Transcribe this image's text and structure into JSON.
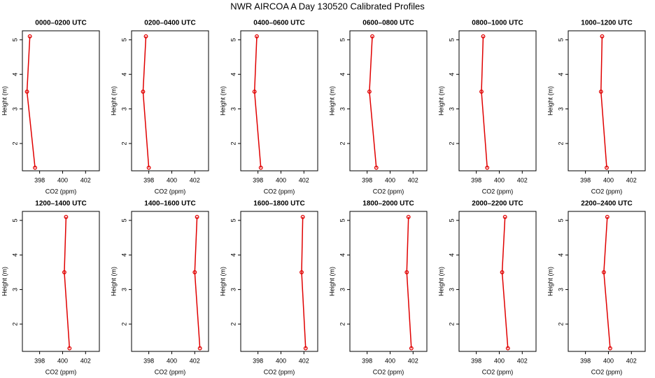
{
  "title": "NWR AIRCOA A  Day 130520  Calibrated Profiles",
  "chart_data": [
    {
      "type": "line",
      "title": "0000–0200 UTC",
      "xlabel": "CO2 (ppm)",
      "ylabel": "Height (m)",
      "x": [
        397.6,
        396.9,
        397.15
      ],
      "values": [
        1.3,
        3.5,
        5.1
      ],
      "color": "#e00000",
      "xlim": [
        396.5,
        403.2
      ],
      "ylim": [
        1.21,
        5.26
      ],
      "xticks": [
        398,
        400,
        402
      ],
      "yticks": [
        2,
        3,
        4,
        5
      ]
    },
    {
      "type": "line",
      "title": "0200–0400 UTC",
      "xlabel": "CO2 (ppm)",
      "ylabel": "Height (m)",
      "x": [
        398.0,
        397.5,
        397.75
      ],
      "values": [
        1.3,
        3.5,
        5.1
      ],
      "color": "#e00000",
      "xlim": [
        396.5,
        403.2
      ],
      "ylim": [
        1.21,
        5.26
      ],
      "xticks": [
        398,
        400,
        402
      ],
      "yticks": [
        2,
        3,
        4,
        5
      ]
    },
    {
      "type": "line",
      "title": "0400–0600 UTC",
      "xlabel": "CO2 (ppm)",
      "ylabel": "Height (m)",
      "x": [
        398.25,
        397.7,
        397.9
      ],
      "values": [
        1.3,
        3.5,
        5.1
      ],
      "color": "#e00000",
      "xlim": [
        396.5,
        403.2
      ],
      "ylim": [
        1.21,
        5.26
      ],
      "xticks": [
        398,
        400,
        402
      ],
      "yticks": [
        2,
        3,
        4,
        5
      ]
    },
    {
      "type": "line",
      "title": "0600–0800 UTC",
      "xlabel": "CO2 (ppm)",
      "ylabel": "Height (m)",
      "x": [
        398.8,
        398.2,
        398.45
      ],
      "values": [
        1.3,
        3.5,
        5.1
      ],
      "color": "#e00000",
      "xlim": [
        396.5,
        403.2
      ],
      "ylim": [
        1.21,
        5.26
      ],
      "xticks": [
        398,
        400,
        402
      ],
      "yticks": [
        2,
        3,
        4,
        5
      ]
    },
    {
      "type": "line",
      "title": "0800–1000 UTC",
      "xlabel": "CO2 (ppm)",
      "ylabel": "Height (m)",
      "x": [
        398.95,
        398.45,
        398.6
      ],
      "values": [
        1.3,
        3.5,
        5.1
      ],
      "color": "#e00000",
      "xlim": [
        396.5,
        403.2
      ],
      "ylim": [
        1.21,
        5.26
      ],
      "xticks": [
        398,
        400,
        402
      ],
      "yticks": [
        2,
        3,
        4,
        5
      ]
    },
    {
      "type": "line",
      "title": "1000–1200 UTC",
      "xlabel": "CO2 (ppm)",
      "ylabel": "Height (m)",
      "x": [
        399.85,
        399.35,
        399.45
      ],
      "values": [
        1.3,
        3.5,
        5.1
      ],
      "color": "#e00000",
      "xlim": [
        396.5,
        403.2
      ],
      "ylim": [
        1.21,
        5.26
      ],
      "xticks": [
        398,
        400,
        402
      ],
      "yticks": [
        2,
        3,
        4,
        5
      ]
    },
    {
      "type": "line",
      "title": "1200–1400 UTC",
      "xlabel": "CO2 (ppm)",
      "ylabel": "Height (m)",
      "x": [
        400.6,
        400.15,
        400.3
      ],
      "values": [
        1.3,
        3.5,
        5.1
      ],
      "color": "#e00000",
      "xlim": [
        396.5,
        403.2
      ],
      "ylim": [
        1.21,
        5.26
      ],
      "xticks": [
        398,
        400,
        402
      ],
      "yticks": [
        2,
        3,
        4,
        5
      ]
    },
    {
      "type": "line",
      "title": "1400–1600 UTC",
      "xlabel": "CO2 (ppm)",
      "ylabel": "Height (m)",
      "x": [
        402.45,
        402.0,
        402.2
      ],
      "values": [
        1.3,
        3.5,
        5.1
      ],
      "color": "#e00000",
      "xlim": [
        396.5,
        403.2
      ],
      "ylim": [
        1.21,
        5.26
      ],
      "xticks": [
        398,
        400,
        402
      ],
      "yticks": [
        2,
        3,
        4,
        5
      ]
    },
    {
      "type": "line",
      "title": "1600–1800 UTC",
      "xlabel": "CO2 (ppm)",
      "ylabel": "Height (m)",
      "x": [
        402.15,
        401.8,
        401.9
      ],
      "values": [
        1.3,
        3.5,
        5.1
      ],
      "color": "#e00000",
      "xlim": [
        396.5,
        403.2
      ],
      "ylim": [
        1.21,
        5.26
      ],
      "xticks": [
        398,
        400,
        402
      ],
      "yticks": [
        2,
        3,
        4,
        5
      ]
    },
    {
      "type": "line",
      "title": "1800–2000 UTC",
      "xlabel": "CO2 (ppm)",
      "ylabel": "Height (m)",
      "x": [
        401.85,
        401.45,
        401.6
      ],
      "values": [
        1.3,
        3.5,
        5.1
      ],
      "color": "#e00000",
      "xlim": [
        396.5,
        403.2
      ],
      "ylim": [
        1.21,
        5.26
      ],
      "xticks": [
        398,
        400,
        402
      ],
      "yticks": [
        2,
        3,
        4,
        5
      ]
    },
    {
      "type": "line",
      "title": "2000–2200 UTC",
      "xlabel": "CO2 (ppm)",
      "ylabel": "Height (m)",
      "x": [
        400.75,
        400.25,
        400.5
      ],
      "values": [
        1.3,
        3.5,
        5.1
      ],
      "color": "#e00000",
      "xlim": [
        396.5,
        403.2
      ],
      "ylim": [
        1.21,
        5.26
      ],
      "xticks": [
        398,
        400,
        402
      ],
      "yticks": [
        2,
        3,
        4,
        5
      ]
    },
    {
      "type": "line",
      "title": "2200–2400 UTC",
      "xlabel": "CO2 (ppm)",
      "ylabel": "Height (m)",
      "x": [
        400.15,
        399.6,
        399.9
      ],
      "values": [
        1.3,
        3.5,
        5.1
      ],
      "color": "#e00000",
      "xlim": [
        396.5,
        403.2
      ],
      "ylim": [
        1.21,
        5.26
      ],
      "xticks": [
        398,
        400,
        402
      ],
      "yticks": [
        2,
        3,
        4,
        5
      ]
    }
  ]
}
